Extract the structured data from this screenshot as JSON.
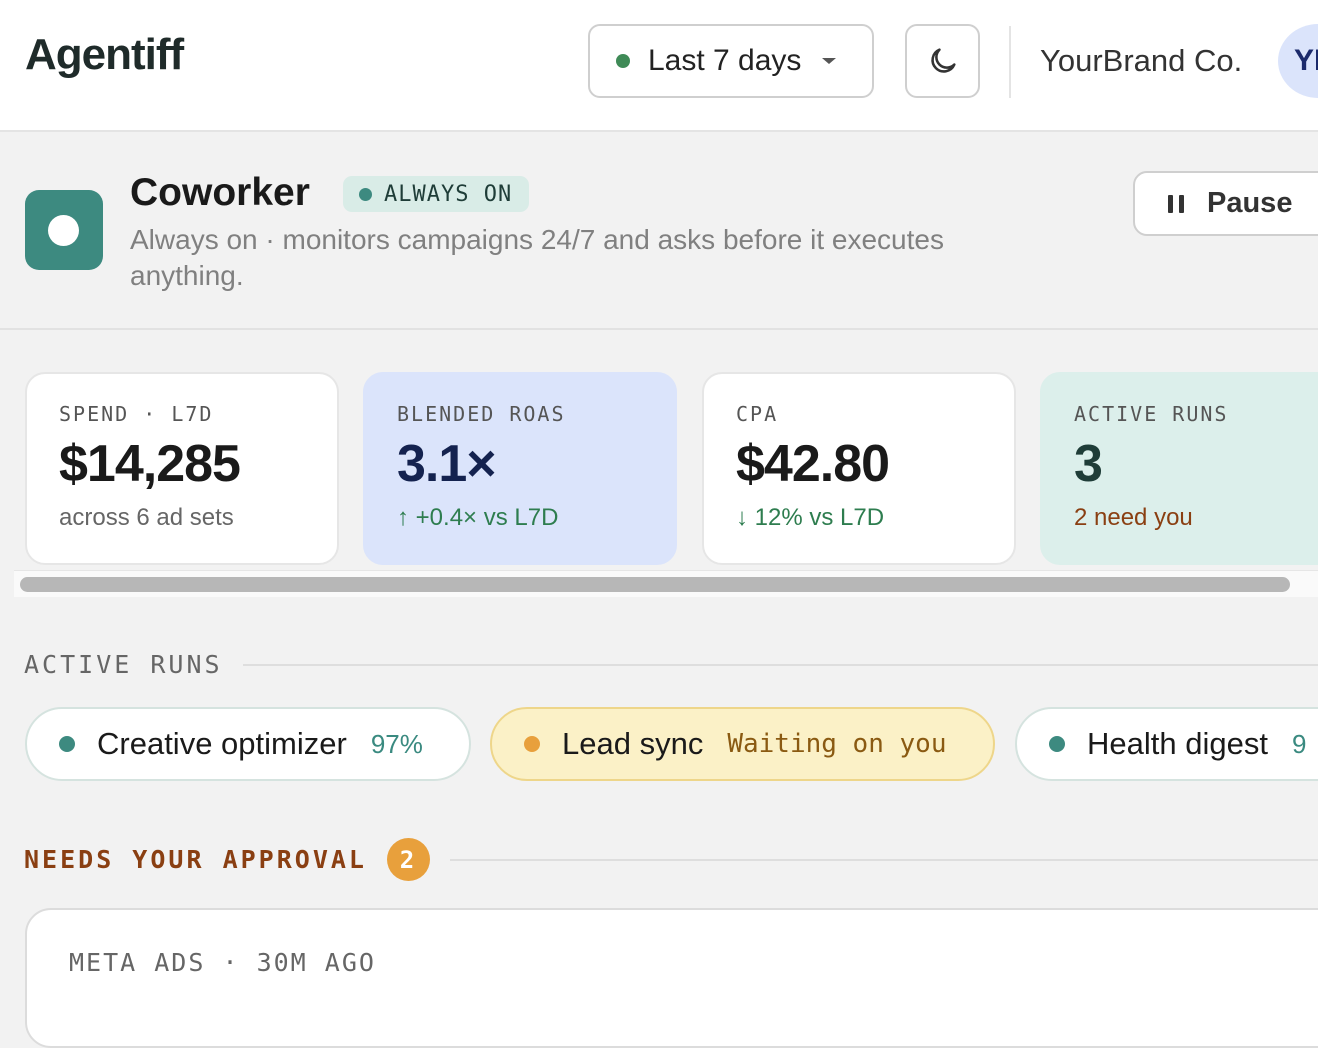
{
  "header": {
    "logo": "Agentiff",
    "date_range": "Last 7 days",
    "brand": "YourBrand Co.",
    "avatar": "YB"
  },
  "agent": {
    "name": "Coworker",
    "status": "ALWAYS ON",
    "description": "Always on · monitors campaigns 24/7 and asks before it executes anything.",
    "action": "Pause"
  },
  "metrics": [
    {
      "label": "SPEND · L7D",
      "value": "$14,285",
      "note": "across 6 ad sets"
    },
    {
      "label": "BLENDED ROAS",
      "value": "3.1×",
      "note": "↑ +0.4× vs L7D"
    },
    {
      "label": "CPA",
      "value": "$42.80",
      "note": "↓ 12% vs L7D"
    },
    {
      "label": "ACTIVE RUNS",
      "value": "3",
      "note": "2 need you"
    }
  ],
  "active_runs": {
    "title": "ACTIVE RUNS",
    "runs": [
      {
        "name": "Creative optimizer",
        "status": "97%"
      },
      {
        "name": "Lead sync",
        "status": "Waiting on you"
      },
      {
        "name": "Health digest",
        "status": "9"
      }
    ]
  },
  "approvals": {
    "title": "NEEDS YOUR APPROVAL",
    "count": 2,
    "items": [
      {
        "meta": "META ADS · 30M AGO"
      }
    ]
  }
}
